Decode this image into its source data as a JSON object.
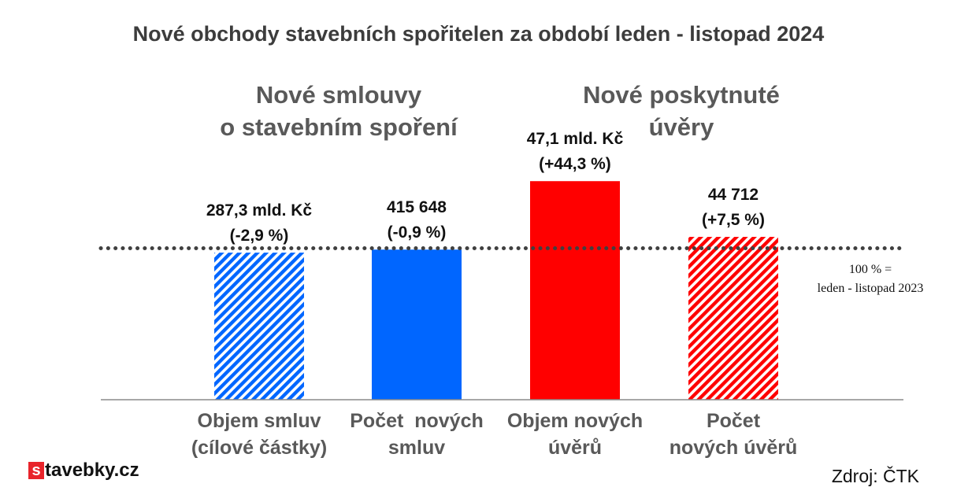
{
  "title": "Nové obchody stavebních spořitelen za období leden - listopad 2024",
  "group_headers": [
    {
      "line1": "Nové smlouvy",
      "line2": "o stavebním spoření"
    },
    {
      "line1": "Nové poskytnuté",
      "line2": "úvěry"
    }
  ],
  "reference_note": {
    "line1": "100 % =",
    "line2": "leden - listopad 2023"
  },
  "logo": {
    "mark": "s",
    "text": "tavebky.cz",
    "color": "#e8242b"
  },
  "source": "Zdroj: ČTK",
  "chart_data": {
    "type": "bar",
    "title": "Nové obchody stavebních spořitelen za období leden - listopad 2024",
    "unit": "% of leden - listopad 2023",
    "reference_line": 100,
    "categories": [
      {
        "line1": "Objem smluv",
        "line2": "(cílové částky)"
      },
      {
        "line1": "Počet  nových",
        "line2": "smluv"
      },
      {
        "line1": "Objem nových",
        "line2": "úvěrů"
      },
      {
        "line1": "Počet",
        "line2": "nových úvěrů"
      }
    ],
    "values": [
      97.1,
      99.1,
      144.3,
      107.5
    ],
    "value_labels": [
      {
        "line1": "287,3 mld. Kč",
        "line2": "(-2,9 %)"
      },
      {
        "line1": "415 648",
        "line2": "(-0,9 %)"
      },
      {
        "line1": "47,1 mld. Kč",
        "line2": "(+44,3 %)"
      },
      {
        "line1": "44 712",
        "line2": "(+7,5 %)"
      }
    ],
    "bar_colors": [
      "#0066ff",
      "#0066ff",
      "#ff0000",
      "#ff0000"
    ],
    "bar_patterns": [
      "hatched",
      "solid",
      "solid",
      "hatched"
    ],
    "ylim": [
      0,
      160
    ],
    "grid": false,
    "legend": "none"
  }
}
